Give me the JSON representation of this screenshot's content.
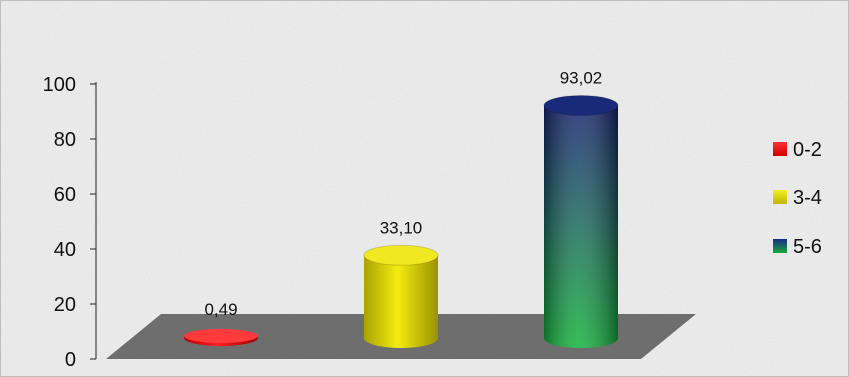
{
  "chart_data": {
    "type": "bar",
    "title": "",
    "xlabel": "",
    "ylabel": "",
    "categories": [
      "0-2",
      "3-4",
      "5-6"
    ],
    "values": [
      0.49,
      33.1,
      93.02
    ],
    "value_labels": [
      "0,49",
      "33,10",
      "93,02"
    ],
    "ylim": [
      0,
      100
    ],
    "yticks": [
      0,
      20,
      40,
      60,
      80,
      100
    ],
    "ytick_labels": [
      "0",
      "20",
      "40",
      "60",
      "80",
      "100"
    ],
    "grid": false,
    "legend": {
      "placement": "right",
      "entries": [
        "0-2",
        "3-4",
        "5-6"
      ]
    },
    "style": "3d-cylinder",
    "colors": {
      "0-2": "#ff0000",
      "3-4": "#e8e000",
      "5-6-top": "#1a2a8a",
      "5-6-bottom": "#18a83a",
      "floor": "#6e6e6e",
      "background": "#f1f1f1"
    }
  }
}
